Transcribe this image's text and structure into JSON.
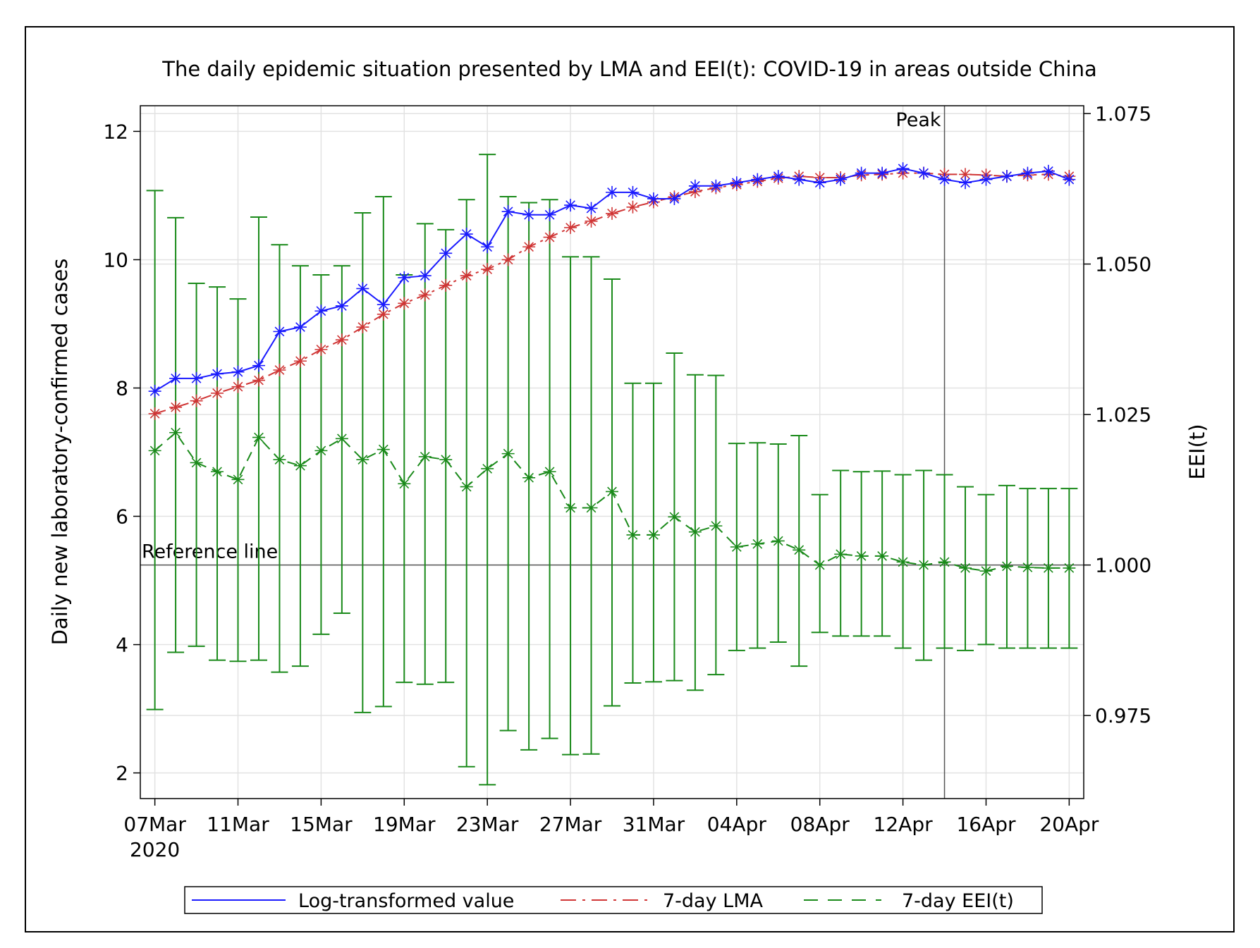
{
  "chart_data": {
    "type": "line",
    "title": "The daily epidemic situation presented by LMA and EEI(t): COVID-19 in areas outside China",
    "ylabel_left": "Daily new laboratory-confirmed cases",
    "ylabel_right": "EEI(t)",
    "y_left_range": [
      1.6,
      12.4
    ],
    "y_right_range": [
      0.9612,
      1.0763
    ],
    "y_left_ticks": [
      "2",
      "4",
      "6",
      "8",
      "10",
      "12"
    ],
    "y_right_ticks": [
      "0.975",
      "1.000",
      "1.025",
      "1.050",
      "1.075"
    ],
    "x_start": "07Mar2020",
    "x_range_days": [
      -0.7,
      44.7
    ],
    "x_tick_labels": [
      "07Mar",
      "11Mar",
      "15Mar",
      "19Mar",
      "23Mar",
      "27Mar",
      "31Mar",
      "04Apr",
      "08Apr",
      "12Apr",
      "16Apr",
      "20Apr"
    ],
    "x_tick_year": "2020",
    "grid": true,
    "legend_position": "bottom",
    "reference_line": {
      "label": "Reference line",
      "eei": 1.0
    },
    "peak_line": {
      "label": "Peak",
      "date": "14Apr"
    },
    "dates": [
      "07Mar",
      "08Mar",
      "09Mar",
      "10Mar",
      "11Mar",
      "12Mar",
      "13Mar",
      "14Mar",
      "15Mar",
      "16Mar",
      "17Mar",
      "18Mar",
      "19Mar",
      "20Mar",
      "21Mar",
      "22Mar",
      "23Mar",
      "24Mar",
      "25Mar",
      "26Mar",
      "27Mar",
      "28Mar",
      "29Mar",
      "30Mar",
      "31Mar",
      "01Apr",
      "02Apr",
      "03Apr",
      "04Apr",
      "05Apr",
      "06Apr",
      "07Apr",
      "08Apr",
      "09Apr",
      "10Apr",
      "11Apr",
      "12Apr",
      "13Apr",
      "14Apr",
      "15Apr",
      "16Apr",
      "17Apr",
      "18Apr",
      "19Apr",
      "20Apr"
    ],
    "series": [
      {
        "name": "Log-transformed value",
        "color": "#1a1aff",
        "axis": "left",
        "values": [
          7.95,
          8.15,
          8.15,
          8.22,
          8.25,
          8.35,
          8.88,
          8.95,
          9.2,
          9.28,
          9.55,
          9.3,
          9.72,
          9.75,
          10.1,
          10.4,
          10.2,
          10.75,
          10.7,
          10.7,
          10.85,
          10.8,
          11.05,
          11.05,
          10.95,
          10.95,
          11.15,
          11.15,
          11.2,
          11.25,
          11.3,
          11.25,
          11.2,
          11.25,
          11.35,
          11.35,
          11.42,
          11.35,
          11.25,
          11.2,
          11.25,
          11.3,
          11.35,
          11.38,
          11.25
        ]
      },
      {
        "name": "7-day LMA",
        "color": "#d03535",
        "axis": "left",
        "values": [
          7.6,
          7.7,
          7.8,
          7.92,
          8.02,
          8.12,
          8.28,
          8.42,
          8.6,
          8.75,
          8.95,
          9.15,
          9.32,
          9.45,
          9.6,
          9.75,
          9.85,
          10.0,
          10.2,
          10.35,
          10.5,
          10.6,
          10.72,
          10.82,
          10.9,
          10.98,
          11.06,
          11.12,
          11.17,
          11.22,
          11.27,
          11.3,
          11.28,
          11.28,
          11.32,
          11.33,
          11.35,
          11.35,
          11.33,
          11.33,
          11.32,
          11.3,
          11.32,
          11.33,
          11.3
        ]
      },
      {
        "name": "7-day EEI(t)",
        "color": "#1a8a1a",
        "axis": "right",
        "values": [
          1.019,
          1.022,
          1.017,
          1.0155,
          1.0142,
          1.0212,
          1.0175,
          1.0165,
          1.019,
          1.021,
          1.0175,
          1.0192,
          1.0135,
          1.018,
          1.0175,
          1.013,
          1.016,
          1.0185,
          1.0145,
          1.0155,
          1.0095,
          1.0095,
          1.0122,
          1.005,
          1.005,
          1.008,
          1.0055,
          1.0065,
          1.003,
          1.0035,
          1.004,
          1.0025,
          1.0,
          1.0018,
          1.0015,
          1.0015,
          1.0005,
          1.0,
          1.0005,
          0.9995,
          0.999,
          0.9998,
          0.9996,
          0.9995,
          0.9995
        ],
        "lower": [
          0.976,
          0.9855,
          0.9865,
          0.9842,
          0.984,
          0.9842,
          0.9822,
          0.9832,
          0.9885,
          0.992,
          0.9755,
          0.9765,
          0.9805,
          0.9802,
          0.9805,
          0.9665,
          0.9635,
          0.9725,
          0.9693,
          0.9712,
          0.9685,
          0.9686,
          0.9766,
          0.9804,
          0.9806,
          0.9808,
          0.9792,
          0.9818,
          0.9858,
          0.9862,
          0.9872,
          0.9832,
          0.9888,
          0.9882,
          0.9882,
          0.9882,
          0.9862,
          0.9842,
          0.9862,
          0.9858,
          0.9868,
          0.9862,
          0.9862,
          0.9862,
          0.9862
        ],
        "upper": [
          1.0622,
          1.0577,
          1.0468,
          1.0462,
          1.0442,
          1.0578,
          1.0532,
          1.0497,
          1.0482,
          1.0497,
          1.0585,
          1.0612,
          1.0482,
          1.0567,
          1.0557,
          1.0607,
          1.0682,
          1.0612,
          1.0602,
          1.0607,
          1.0512,
          1.0512,
          1.0475,
          1.0302,
          1.0302,
          1.0352,
          1.0316,
          1.0315,
          1.0202,
          1.0203,
          1.0201,
          1.0215,
          1.0117,
          1.0157,
          1.0155,
          1.0156,
          1.015,
          1.0157,
          1.015,
          1.013,
          1.0117,
          1.0132,
          1.0127,
          1.0127,
          1.0127
        ]
      }
    ]
  }
}
